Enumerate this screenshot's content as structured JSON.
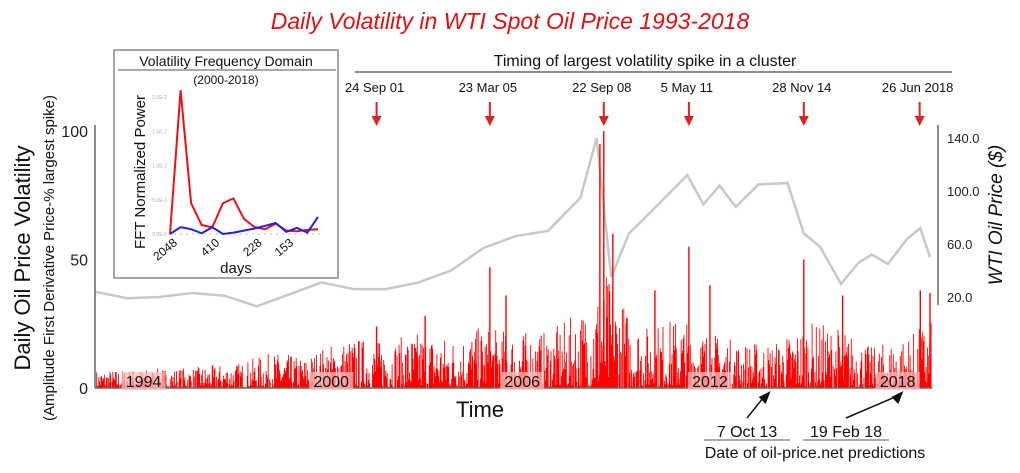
{
  "chart_data": [
    {
      "type": "bar",
      "title": "Daily Volatility  in WTI  Spot Oil Price  1993-2018",
      "xlabel": "Time",
      "ylabel": "Daily Oil Price Volatility",
      "ylabel2": "(Amplitude  First Derivative  Price-% largest spike)",
      "y2label": "WTI Oil Price ($)",
      "ylim": [
        0,
        100
      ],
      "y2lim": [
        0,
        145
      ],
      "xlim": [
        1993,
        2018.8
      ],
      "yticks": [
        "0",
        "50",
        "100"
      ],
      "y2ticks": [
        "20.0",
        "60.0",
        "100.0",
        "140.0"
      ],
      "year_labels": [
        {
          "x": 1994.5,
          "label": "1994"
        },
        {
          "x": 2000.3,
          "label": "2000"
        },
        {
          "x": 2006.2,
          "label": "2006"
        },
        {
          "x": 2012.0,
          "label": "2012"
        },
        {
          "x": 2017.8,
          "label": "2018"
        }
      ],
      "volatility_color": "#ff0000",
      "price_color": "#c8c8c8",
      "volatility_envelope": [
        [
          1993,
          7
        ],
        [
          1996,
          8
        ],
        [
          1997.5,
          10
        ],
        [
          1998.5,
          14
        ],
        [
          1999.5,
          12
        ],
        [
          2000,
          16
        ],
        [
          2001,
          20
        ],
        [
          2002,
          18
        ],
        [
          2003,
          22
        ],
        [
          2004,
          20
        ],
        [
          2005,
          24
        ],
        [
          2006,
          22
        ],
        [
          2007,
          22
        ],
        [
          2008,
          30
        ],
        [
          2008.8,
          45
        ],
        [
          2009.5,
          30
        ],
        [
          2010,
          24
        ],
        [
          2011,
          28
        ],
        [
          2012,
          22
        ],
        [
          2013,
          18
        ],
        [
          2014,
          18
        ],
        [
          2015,
          26
        ],
        [
          2016,
          24
        ],
        [
          2017,
          16
        ],
        [
          2018,
          20
        ],
        [
          2018.8,
          26
        ]
      ],
      "volatility_spikes": [
        [
          2001.7,
          24
        ],
        [
          2003.2,
          28
        ],
        [
          2005.2,
          47
        ],
        [
          2005.7,
          36
        ],
        [
          2008.6,
          95
        ],
        [
          2008.72,
          100
        ],
        [
          2009.0,
          60
        ],
        [
          2010.3,
          38
        ],
        [
          2011.35,
          55
        ],
        [
          2012.0,
          40
        ],
        [
          2014.9,
          50
        ],
        [
          2016.1,
          36
        ],
        [
          2018.5,
          38
        ],
        [
          2018.8,
          37
        ]
      ],
      "price_series": [
        [
          1993,
          24
        ],
        [
          1994,
          19
        ],
        [
          1995,
          20
        ],
        [
          1996,
          23
        ],
        [
          1997,
          21
        ],
        [
          1998,
          13
        ],
        [
          1999,
          22
        ],
        [
          2000,
          31
        ],
        [
          2001,
          26
        ],
        [
          2002,
          26
        ],
        [
          2003,
          31
        ],
        [
          2004,
          40
        ],
        [
          2005,
          57
        ],
        [
          2006,
          66
        ],
        [
          2007,
          70
        ],
        [
          2008.0,
          95
        ],
        [
          2008.5,
          140
        ],
        [
          2008.95,
          35
        ],
        [
          2009.5,
          68
        ],
        [
          2010,
          80
        ],
        [
          2011.3,
          112
        ],
        [
          2011.8,
          90
        ],
        [
          2012.3,
          104
        ],
        [
          2012.8,
          88
        ],
        [
          2013.5,
          105
        ],
        [
          2014.4,
          106
        ],
        [
          2014.9,
          68
        ],
        [
          2015.4,
          58
        ],
        [
          2016.05,
          30
        ],
        [
          2016.6,
          46
        ],
        [
          2017,
          52
        ],
        [
          2017.5,
          45
        ],
        [
          2018.1,
          64
        ],
        [
          2018.5,
          72
        ],
        [
          2018.8,
          50
        ]
      ],
      "spike_timing": {
        "heading": "Timing of largest volatility spike in a cluster",
        "events": [
          {
            "x": 2001.7,
            "label": "24 Sep 01"
          },
          {
            "x": 2005.2,
            "label": "23 Mar 05"
          },
          {
            "x": 2008.72,
            "label": "22 Sep 08"
          },
          {
            "x": 2011.35,
            "label": "5 May 11"
          },
          {
            "x": 2014.9,
            "label": "28 Nov 14"
          },
          {
            "x": 2018.48,
            "label": "26 Jun 2018"
          }
        ]
      },
      "predictions": {
        "caption": "Date of oil-price.net predictions",
        "items": [
          {
            "label": "7 Oct 13",
            "x": 2014.0
          },
          {
            "label": "19 Feb 18",
            "x": 2018.1
          }
        ]
      }
    },
    {
      "type": "line",
      "title": "Volatility Frequency Domain",
      "subtitle": "(2000-2018)",
      "xlabel": "days",
      "ylabel": "FFT Normalized Power",
      "xticks": [
        {
          "i": 0,
          "label": "2048"
        },
        {
          "i": 4,
          "label": "410"
        },
        {
          "i": 8,
          "label": "228"
        },
        {
          "i": 11,
          "label": "153"
        }
      ],
      "yticks": [
        "0.0E-0",
        "5.0E-3",
        "1.0E-2",
        "1.5E-2",
        "2.0E-2"
      ],
      "ylim": [
        0,
        0.02
      ],
      "series": [
        {
          "color": "#ee1111",
          "values": [
            0,
            0.021,
            0.0045,
            0.0013,
            0.001,
            0.0045,
            0.0052,
            0.0022,
            0.001,
            0.0007,
            0.0015,
            0.0005,
            0.0004,
            0.0006,
            0.0007
          ]
        },
        {
          "color": "#2222dd",
          "values": [
            0,
            0.001,
            0.0007,
            0.0001,
            0.001,
            0.0,
            0.0002,
            0.0005,
            0.0008,
            0.0012,
            0.0016,
            0.0003,
            0.0009,
            0.0002,
            0.0025
          ]
        }
      ]
    }
  ]
}
